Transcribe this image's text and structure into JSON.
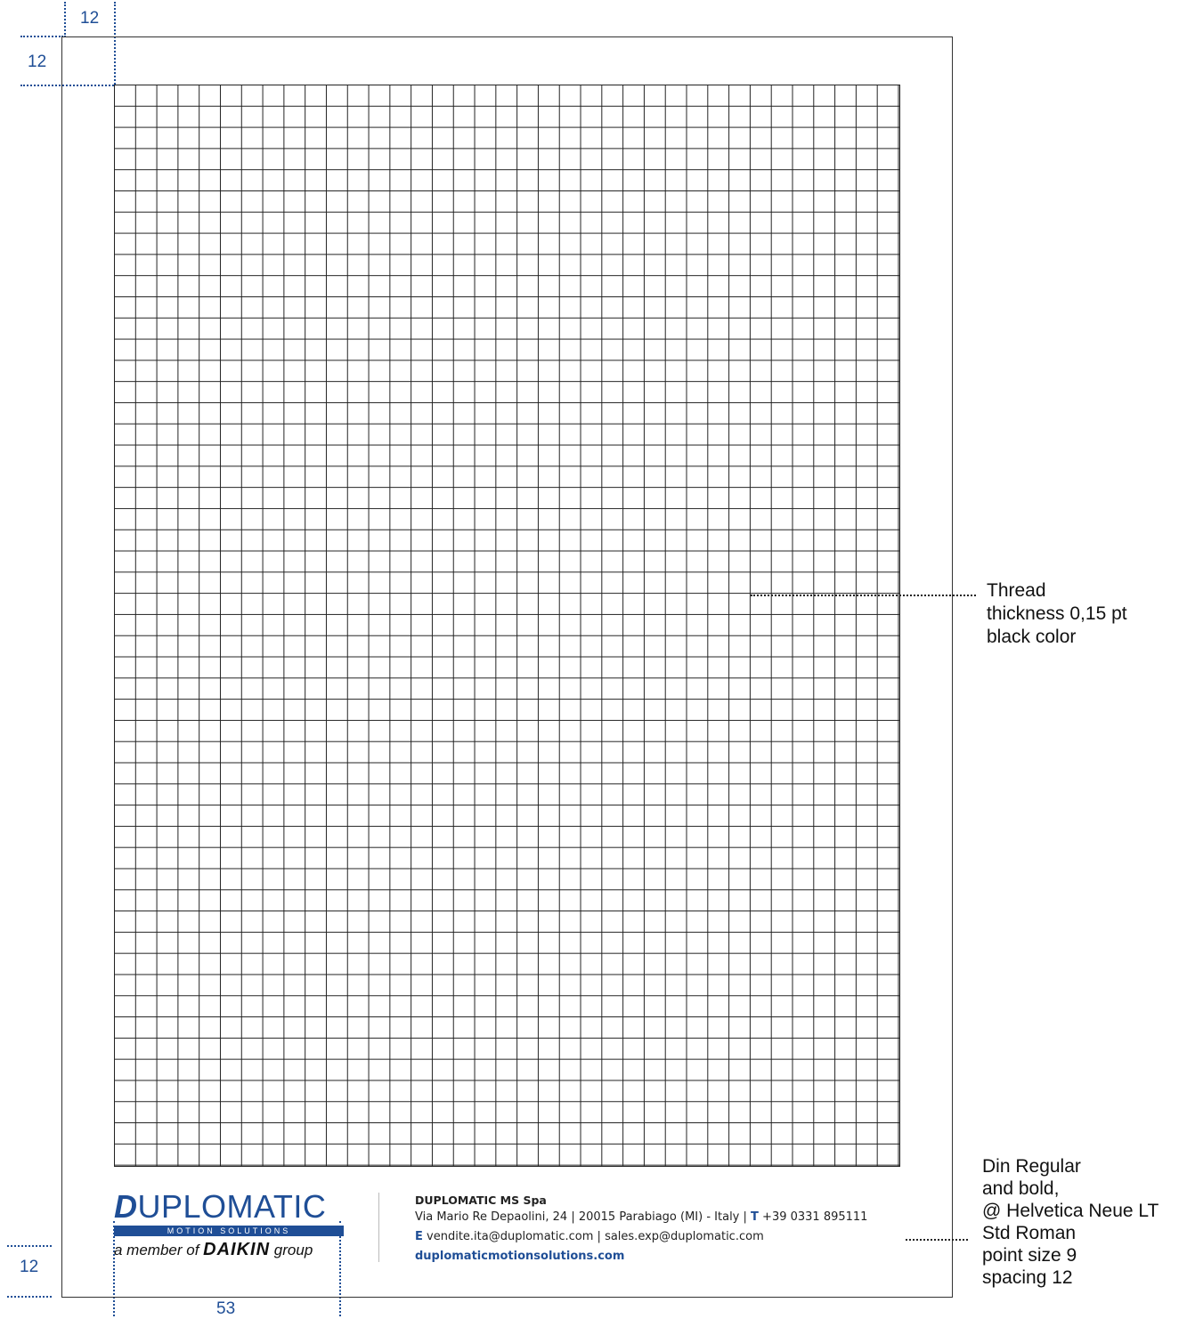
{
  "dimensions": {
    "top_margin": "12",
    "left_margin": "12",
    "bottom_margin": "12",
    "logo_width": "53"
  },
  "annotations": {
    "thread": [
      "Thread",
      "thickness 0,15 pt",
      "black color"
    ],
    "typography": [
      "Din Regular",
      "and bold,",
      "@ Helvetica Neue LT",
      "Std Roman",
      "point size 9",
      "spacing 12"
    ]
  },
  "logo": {
    "initial": "D",
    "rest": "UPLOMATIC",
    "tagline": "MOTION SOLUTIONS",
    "member_prefix": "a member of",
    "member_brand": "DAIKIN",
    "member_suffix": "group"
  },
  "address": {
    "company": "DUPLOMATIC MS Spa",
    "line1": "Via Mario Re Depaolini, 24 | 20015 Parabiago (MI) - Italy |",
    "phone_label": "T",
    "phone": "+39 0331 895111",
    "email_label": "E",
    "emails": "vendite.ita@duplomatic.com | sales.exp@duplomatic.com",
    "website": "duplomaticmotionsolutions.com"
  },
  "colors": {
    "accent": "#1f4e96",
    "grid": "#222222"
  }
}
